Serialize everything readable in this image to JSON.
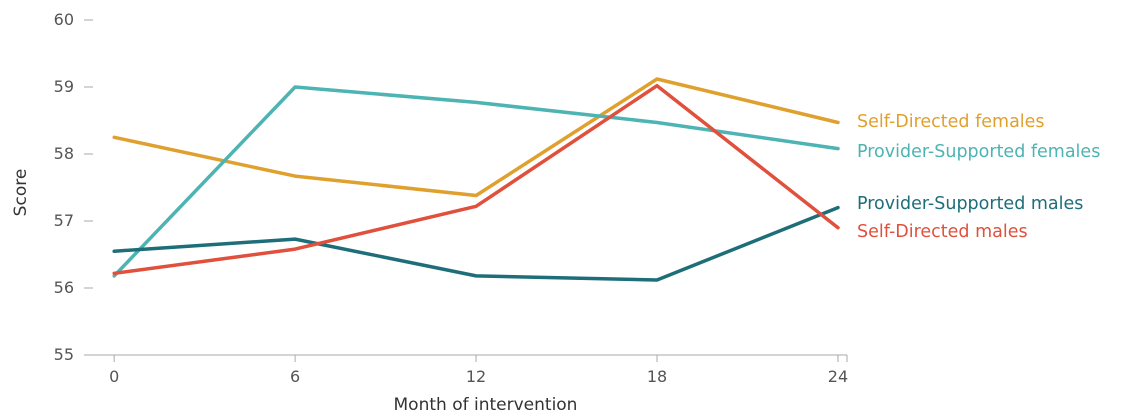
{
  "chart_data": {
    "type": "line",
    "title": "",
    "xlabel": "Month of intervention",
    "ylabel": "Score",
    "x": [
      0,
      6,
      12,
      18,
      24
    ],
    "xticks": [
      "0",
      "6",
      "12",
      "18",
      "24"
    ],
    "yticks": [
      "55",
      "56",
      "57",
      "58",
      "59",
      "60"
    ],
    "xlim": [
      -1,
      24.3
    ],
    "ylim": [
      55,
      60
    ],
    "grid": false,
    "legend": "direct-labels-right",
    "series": [
      {
        "name": "Self-Directed females",
        "color": "#E0A02E",
        "values": [
          58.25,
          57.67,
          57.38,
          59.12,
          58.47
        ]
      },
      {
        "name": "Provider-Supported females",
        "color": "#4DB3B3",
        "values": [
          56.18,
          59.0,
          58.77,
          58.47,
          58.08
        ]
      },
      {
        "name": "Provider-Supported males",
        "color": "#1E6E7A",
        "values": [
          56.55,
          56.73,
          56.18,
          56.12,
          57.2
        ]
      },
      {
        "name": "Self-Directed males",
        "color": "#E0503C",
        "values": [
          56.22,
          56.58,
          57.22,
          59.02,
          56.9
        ]
      }
    ]
  }
}
